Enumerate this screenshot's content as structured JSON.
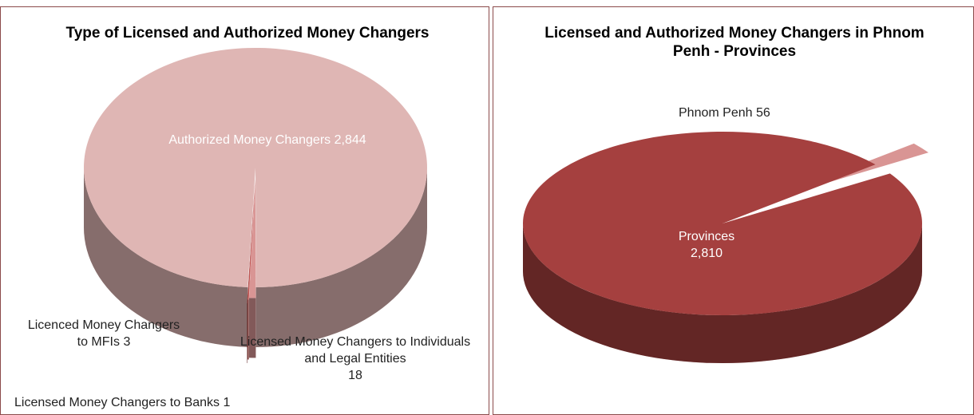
{
  "chart_data": [
    {
      "type": "pie3d",
      "title": "Type of Licensed and Authorized Money Changers",
      "categories": [
        "Authorized Money Changers",
        "Licensed Money Changers to Individuals and Legal Entities",
        "Licenced Money Changers to MFIs",
        "Licensed Money Changers to Banks"
      ],
      "values": [
        2844,
        18,
        3,
        1
      ],
      "value_labels": [
        "2,844",
        "18",
        "3",
        "1"
      ],
      "colors": [
        "#dfb6b4",
        "#d99594",
        "#c0504d",
        "#943634"
      ]
    },
    {
      "type": "pie3d",
      "title": "Licensed and Authorized Money Changers in Phnom Penh - Provinces",
      "categories": [
        "Phnom Penh",
        "Provinces"
      ],
      "values": [
        56,
        2810
      ],
      "value_labels": [
        "56",
        "2,810"
      ],
      "colors": [
        "#d99594",
        "#a5403f"
      ]
    }
  ]
}
